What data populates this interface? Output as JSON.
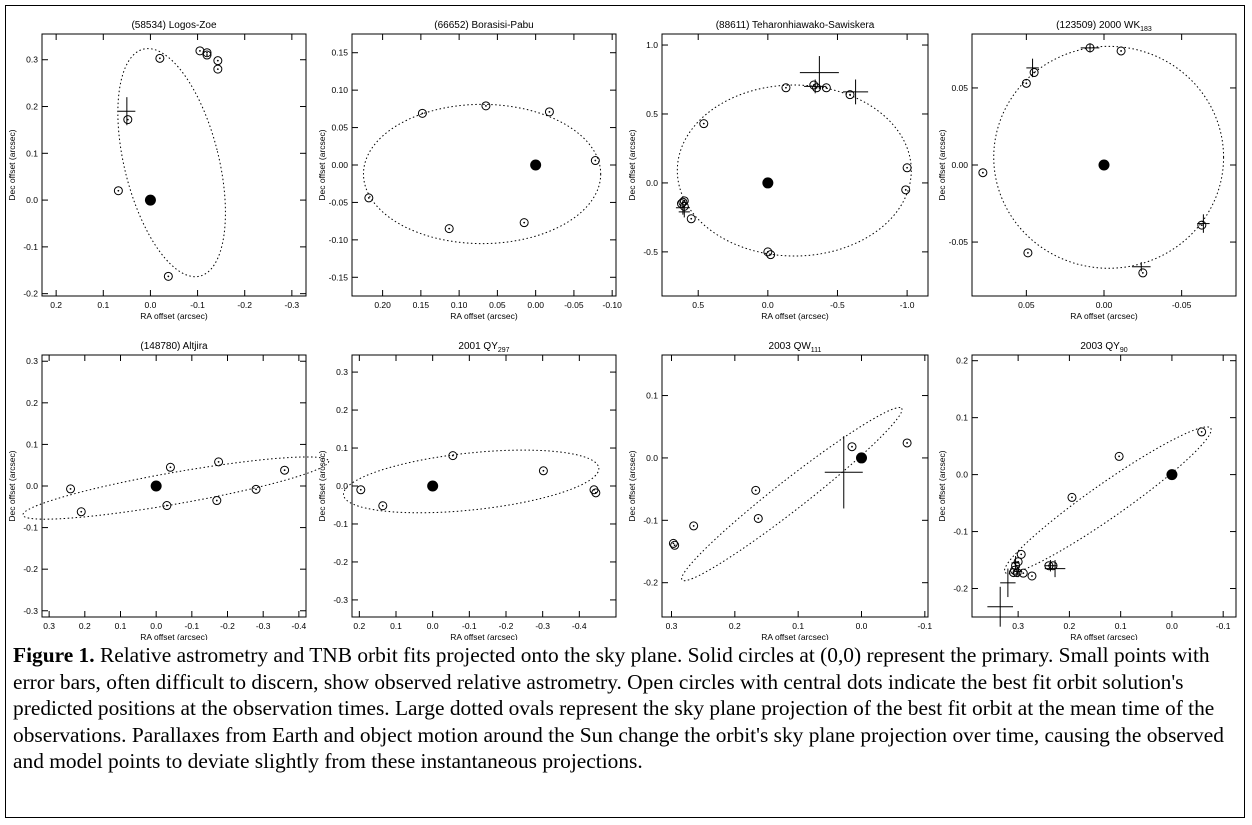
{
  "chart_data": [
    {
      "type": "scatter",
      "title": "(58534) Logos-Zoe",
      "xlabel": "RA offset (arcsec)",
      "ylabel": "Dec offset (arcsec)",
      "xlim": [
        0.23,
        -0.33
      ],
      "ylim": [
        -0.205,
        0.355
      ],
      "xticks": [
        0.2,
        0.1,
        0.0,
        -0.1,
        -0.2,
        -0.3
      ],
      "xtick_labels": [
        "0.2",
        "0.1",
        "0.0",
        "-0.1",
        "-0.2",
        "-0.3"
      ],
      "yticks": [
        -0.2,
        -0.1,
        0.0,
        0.1,
        0.2,
        0.3
      ],
      "ytick_labels": [
        "-0.2",
        "-0.1",
        "0.0",
        "0.1",
        "0.2",
        "0.3"
      ],
      "primary": [
        0,
        0
      ],
      "orbit": {
        "cx": -0.045,
        "cy": 0.08,
        "rx": 0.1,
        "ry": 0.25,
        "rot": -14
      },
      "model_points": [
        [
          0.048,
          0.172
        ],
        [
          0.068,
          0.02
        ],
        [
          -0.038,
          -0.163
        ],
        [
          -0.02,
          0.303
        ],
        [
          -0.105,
          0.319
        ],
        [
          -0.12,
          0.315
        ],
        [
          -0.12,
          0.31
        ],
        [
          -0.143,
          0.298
        ],
        [
          -0.143,
          0.28
        ]
      ],
      "observed": [
        [
          0.05,
          0.19,
          0.018,
          0.03
        ]
      ]
    },
    {
      "type": "scatter",
      "title": "(66652) Borasisi-Pabu",
      "xlabel": "RA offset (arcsec)",
      "ylabel": "Dec offset (arcsec)",
      "xlim": [
        0.24,
        -0.105
      ],
      "ylim": [
        -0.175,
        0.175
      ],
      "xticks": [
        0.2,
        0.15,
        0.1,
        0.05,
        0.0,
        -0.05,
        -0.1
      ],
      "xtick_labels": [
        "0.20",
        "0.15",
        "0.10",
        "0.05",
        "0.00",
        "-0.05",
        "-0.10"
      ],
      "yticks": [
        -0.15,
        -0.1,
        -0.05,
        0.0,
        0.05,
        0.1,
        0.15
      ],
      "ytick_labels": [
        "-0.15",
        "-0.10",
        "-0.05",
        "0.00",
        "0.05",
        "0.10",
        "0.15"
      ],
      "primary": [
        0,
        0
      ],
      "orbit": {
        "cx": 0.07,
        "cy": -0.012,
        "rx": 0.155,
        "ry": 0.093,
        "rot": 0
      },
      "model_points": [
        [
          0.148,
          0.069
        ],
        [
          0.065,
          0.079
        ],
        [
          -0.018,
          0.071
        ],
        [
          -0.078,
          0.006
        ],
        [
          0.015,
          -0.077
        ],
        [
          0.113,
          -0.085
        ],
        [
          0.218,
          -0.044
        ]
      ],
      "observed": []
    },
    {
      "type": "scatter",
      "title": "(88611) Teharonhiawako-Sawiskera",
      "xlabel": "RA offset (arcsec)",
      "ylabel": "Dec offset (arcsec)",
      "xlim": [
        0.76,
        -1.15
      ],
      "ylim": [
        -0.82,
        1.08
      ],
      "xticks": [
        0.5,
        0.0,
        -0.5,
        -1.0
      ],
      "xtick_labels": [
        "0.5",
        "0.0",
        "-0.5",
        "-1.0"
      ],
      "yticks": [
        -0.5,
        0.0,
        0.5,
        1.0
      ],
      "ytick_labels": [
        "-0.5",
        "0.0",
        "0.5",
        "1.0"
      ],
      "primary": [
        0,
        0
      ],
      "orbit": {
        "cx": -0.19,
        "cy": 0.09,
        "rx": 0.84,
        "ry": 0.62,
        "rot": 0
      },
      "model_points": [
        [
          0.61,
          -0.14
        ],
        [
          0.62,
          -0.15
        ],
        [
          0.6,
          -0.13
        ],
        [
          0.6,
          -0.17
        ],
        [
          0.55,
          -0.26
        ],
        [
          0.46,
          0.43
        ],
        [
          -0.13,
          0.69
        ],
        [
          -0.33,
          0.71
        ],
        [
          -0.35,
          0.69
        ],
        [
          -0.42,
          0.69
        ],
        [
          -0.59,
          0.64
        ],
        [
          0.0,
          -0.5
        ],
        [
          -0.02,
          -0.52
        ],
        [
          -1.0,
          0.11
        ],
        [
          -0.99,
          -0.05
        ]
      ],
      "observed": [
        [
          -0.37,
          0.8,
          0.14,
          0.12
        ],
        [
          -0.63,
          0.66,
          0.09,
          0.09
        ],
        [
          -0.34,
          0.7,
          0.08,
          0.05
        ],
        [
          0.61,
          -0.18,
          0.05,
          0.05
        ],
        [
          0.6,
          -0.21,
          0.04,
          0.04
        ]
      ]
    },
    {
      "type": "scatter",
      "title": "(123509) 2000 WK183",
      "xlabel": "RA offset (arcsec)",
      "ylabel": "Dec offset (arcsec)",
      "xlim": [
        0.085,
        -0.085
      ],
      "ylim": [
        -0.085,
        0.085
      ],
      "xticks": [
        0.05,
        0.0,
        -0.05
      ],
      "xtick_labels": [
        "0.05",
        "0.00",
        "-0.05"
      ],
      "yticks": [
        -0.05,
        0.0,
        0.05
      ],
      "ytick_labels": [
        "-0.05",
        "0.00",
        "0.05"
      ],
      "primary": [
        0,
        0
      ],
      "orbit": {
        "cx": -0.003,
        "cy": 0.005,
        "rx": 0.074,
        "ry": 0.072,
        "rot": 0
      },
      "model_points": [
        [
          0.078,
          -0.005
        ],
        [
          0.05,
          0.053
        ],
        [
          0.045,
          0.06
        ],
        [
          0.009,
          0.076
        ],
        [
          -0.011,
          0.074
        ],
        [
          -0.063,
          -0.039
        ],
        [
          -0.025,
          -0.07
        ],
        [
          0.049,
          -0.057
        ]
      ],
      "observed": [
        [
          0.046,
          0.063,
          0.004,
          0.006
        ],
        [
          0.009,
          0.076,
          0.006,
          0.003
        ],
        [
          -0.064,
          -0.038,
          0.004,
          0.006
        ],
        [
          -0.024,
          -0.066,
          0.006,
          0.003
        ]
      ]
    },
    {
      "type": "scatter",
      "title": "(148780) Altjira",
      "xlabel": "RA offset (arcsec)",
      "ylabel": "Dec offset (arcsec)",
      "xlim": [
        0.32,
        -0.42
      ],
      "ylim": [
        -0.315,
        0.315
      ],
      "xticks": [
        0.3,
        0.2,
        0.1,
        0.0,
        -0.1,
        -0.2,
        -0.3,
        -0.4
      ],
      "xtick_labels": [
        "0.3",
        "0.2",
        "0.1",
        "0.0",
        "-0.1",
        "-0.2",
        "-0.3",
        "-0.4"
      ],
      "yticks": [
        -0.3,
        -0.2,
        -0.1,
        0.0,
        0.1,
        0.2,
        0.3
      ],
      "ytick_labels": [
        "-0.3",
        "-0.2",
        "-0.1",
        "0.0",
        "0.1",
        "0.2",
        "0.3"
      ],
      "primary": [
        0,
        0
      ],
      "orbit": {
        "cx": -0.055,
        "cy": -0.005,
        "rx": 0.435,
        "ry": 0.038,
        "rot": -10
      },
      "model_points": [
        [
          0.24,
          -0.007
        ],
        [
          0.21,
          -0.062
        ],
        [
          -0.04,
          0.045
        ],
        [
          -0.03,
          -0.047
        ],
        [
          -0.175,
          0.058
        ],
        [
          -0.17,
          -0.035
        ],
        [
          -0.28,
          -0.008
        ],
        [
          -0.36,
          0.038
        ]
      ],
      "observed": []
    },
    {
      "type": "scatter",
      "title": "2001 QY297",
      "xlabel": "RA offset (arcsec)",
      "ylabel": "Dec offset (arcsec)",
      "xlim": [
        0.22,
        -0.5
      ],
      "ylim": [
        -0.345,
        0.345
      ],
      "xticks": [
        0.2,
        0.1,
        0.0,
        -0.1,
        -0.2,
        -0.3,
        -0.4
      ],
      "xtick_labels": [
        "0.2",
        "0.1",
        "0.0",
        "-0.1",
        "-0.2",
        "-0.3",
        "-0.4"
      ],
      "yticks": [
        -0.3,
        -0.2,
        -0.1,
        0.0,
        0.1,
        0.2,
        0.3
      ],
      "ytick_labels": [
        "-0.3",
        "-0.2",
        "-0.1",
        "0.0",
        "0.1",
        "0.2",
        "0.3"
      ],
      "primary": [
        0,
        0
      ],
      "orbit": {
        "cx": -0.105,
        "cy": 0.012,
        "rx": 0.35,
        "ry": 0.075,
        "rot": -6
      },
      "model_points": [
        [
          0.196,
          -0.01
        ],
        [
          0.136,
          -0.052
        ],
        [
          -0.055,
          0.08
        ],
        [
          -0.302,
          0.04
        ],
        [
          -0.44,
          -0.01
        ],
        [
          -0.445,
          -0.018
        ]
      ],
      "observed": []
    },
    {
      "type": "scatter",
      "title": "2003 QW111",
      "xlabel": "RA offset (arcsec)",
      "ylabel": "Dec offset (arcsec)",
      "xlim": [
        0.315,
        -0.105
      ],
      "ylim": [
        -0.255,
        0.165
      ],
      "xticks": [
        0.3,
        0.2,
        0.1,
        0.0,
        -0.1
      ],
      "xtick_labels": [
        "0.3",
        "0.2",
        "0.1",
        "0.0",
        "-0.1"
      ],
      "yticks": [
        -0.2,
        -0.1,
        0.0,
        0.1
      ],
      "ytick_labels": [
        "-0.2",
        "-0.1",
        "0.0",
        "0.1"
      ],
      "primary": [
        0,
        0
      ],
      "orbit": {
        "cx": 0.11,
        "cy": -0.058,
        "rx": 0.22,
        "ry": 0.024,
        "rot": -38
      },
      "model_points": [
        [
          0.297,
          -0.137
        ],
        [
          0.295,
          -0.14
        ],
        [
          0.265,
          -0.109
        ],
        [
          0.167,
          -0.052
        ],
        [
          0.163,
          -0.097
        ],
        [
          0.015,
          0.018
        ],
        [
          -0.072,
          0.024
        ]
      ],
      "observed": [
        [
          0.028,
          -0.023,
          0.03,
          0.058
        ]
      ]
    },
    {
      "type": "scatter",
      "title": "2003 QY90",
      "xlabel": "RA offset (arcsec)",
      "ylabel": "Dec offset (arcsec)",
      "xlim": [
        0.39,
        -0.125
      ],
      "ylim": [
        -0.25,
        0.21
      ],
      "xticks": [
        0.3,
        0.2,
        0.1,
        0.0,
        -0.1
      ],
      "xtick_labels": [
        "0.3",
        "0.2",
        "0.1",
        "0.0",
        "-0.1"
      ],
      "yticks": [
        -0.2,
        -0.1,
        0.0,
        0.1,
        0.2
      ],
      "ytick_labels": [
        "-0.2",
        "-0.1",
        "0.0",
        "0.1",
        "0.2"
      ],
      "primary": [
        0,
        0
      ],
      "orbit": {
        "cx": 0.125,
        "cy": -0.045,
        "rx": 0.245,
        "ry": 0.03,
        "rot": -35
      },
      "model_points": [
        [
          -0.058,
          0.075
        ],
        [
          0.103,
          0.032
        ],
        [
          0.195,
          -0.04
        ],
        [
          0.294,
          -0.14
        ],
        [
          0.3,
          -0.153
        ],
        [
          0.305,
          -0.16
        ],
        [
          0.307,
          -0.168
        ],
        [
          0.309,
          -0.172
        ],
        [
          0.302,
          -0.172
        ],
        [
          0.29,
          -0.173
        ],
        [
          0.273,
          -0.178
        ],
        [
          0.24,
          -0.16
        ],
        [
          0.232,
          -0.16
        ]
      ],
      "observed": [
        [
          0.335,
          -0.232,
          0.025,
          0.035
        ],
        [
          0.32,
          -0.19,
          0.015,
          0.025
        ],
        [
          0.305,
          -0.155,
          0.008,
          0.012
        ],
        [
          0.3,
          -0.17,
          0.008,
          0.01
        ],
        [
          0.228,
          -0.165,
          0.02,
          0.015
        ],
        [
          0.237,
          -0.16,
          0.012,
          0.01
        ]
      ]
    }
  ],
  "titles": [
    {
      "main": "(58534) Logos-Zoe",
      "sub": ""
    },
    {
      "main": "(66652) Borasisi-Pabu",
      "sub": ""
    },
    {
      "main": "(88611) Teharonhiawako-Sawiskera",
      "sub": ""
    },
    {
      "main": "(123509) 2000 WK",
      "sub": "183"
    },
    {
      "main": "(148780) Altjira",
      "sub": ""
    },
    {
      "main": "2001 QY",
      "sub": "297"
    },
    {
      "main": "2003 QW",
      "sub": "111"
    },
    {
      "main": "2003 QY",
      "sub": "90"
    }
  ],
  "caption": {
    "label": "Figure 1.",
    "text": " Relative astrometry and TNB orbit fits projected onto the sky plane.  Solid circles at (0,0) represent the primary.  Small points with error bars, often difficult to discern, show observed relative astrometry.  Open circles with central dots indicate the best fit orbit solution's predicted positions at the observation times.  Large dotted ovals represent the sky plane projection of the best fit orbit at the mean time of the observations.  Parallaxes from Earth and object motion around the Sun change the orbit's sky plane projection over time, causing the observed and model points to deviate slightly from these instantaneous projections."
  }
}
